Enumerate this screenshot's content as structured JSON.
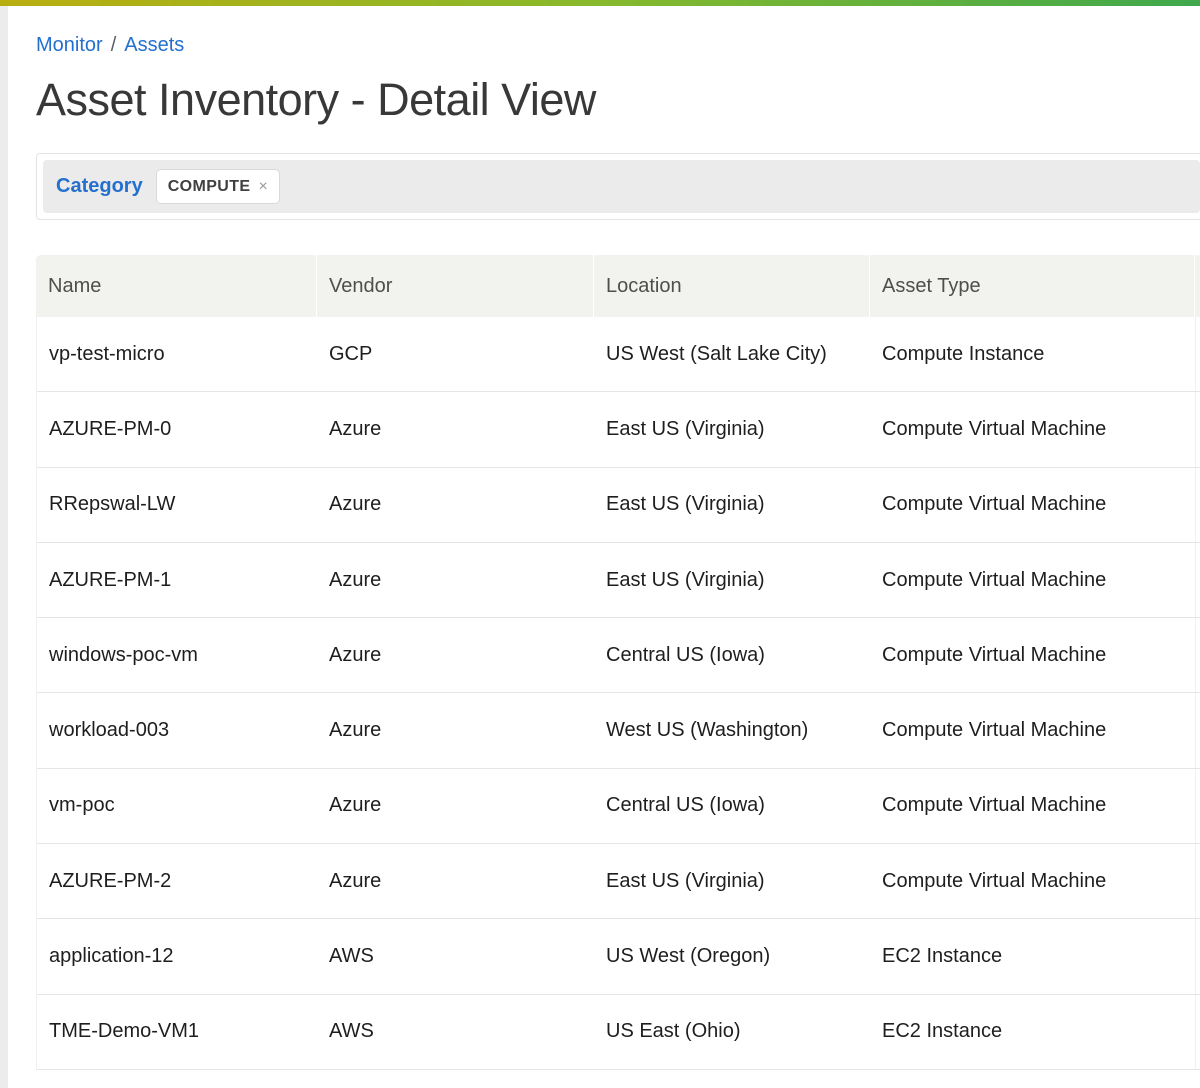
{
  "colors": {
    "accent_blue": "#2470cf",
    "topbar_gradient_left": "#b9ae10",
    "topbar_gradient_mid": "#87b92d",
    "topbar_gradient_right": "#3fa84d",
    "header_bg": "#f2f2ee",
    "filter_bar_bg": "#ebebeb"
  },
  "breadcrumb": {
    "items": [
      {
        "label": "Monitor"
      },
      {
        "label": "Assets"
      }
    ],
    "separator": "/"
  },
  "page": {
    "title": "Asset Inventory - Detail View"
  },
  "filter": {
    "label": "Category",
    "chips": [
      {
        "label": "COMPUTE",
        "remove_icon": "×"
      }
    ]
  },
  "table": {
    "columns": [
      "Name",
      "Vendor",
      "Location",
      "Asset Type"
    ],
    "rows": [
      [
        "vp-test-micro",
        "GCP",
        "US West (Salt Lake City)",
        "Compute Instance"
      ],
      [
        "AZURE-PM-0",
        "Azure",
        "East US (Virginia)",
        "Compute Virtual Machine"
      ],
      [
        "RRepswal-LW",
        "Azure",
        "East US (Virginia)",
        "Compute Virtual Machine"
      ],
      [
        "AZURE-PM-1",
        "Azure",
        "East US (Virginia)",
        "Compute Virtual Machine"
      ],
      [
        "windows-poc-vm",
        "Azure",
        "Central US (Iowa)",
        "Compute Virtual Machine"
      ],
      [
        "workload-003",
        "Azure",
        "West US (Washington)",
        "Compute Virtual Machine"
      ],
      [
        "vm-poc",
        "Azure",
        "Central US (Iowa)",
        "Compute Virtual Machine"
      ],
      [
        "AZURE-PM-2",
        "Azure",
        "East US (Virginia)",
        "Compute Virtual Machine"
      ],
      [
        "application-12",
        "AWS",
        "US West (Oregon)",
        "EC2 Instance"
      ],
      [
        "TME-Demo-VM1",
        "AWS",
        "US East (Ohio)",
        "EC2 Instance"
      ]
    ]
  }
}
